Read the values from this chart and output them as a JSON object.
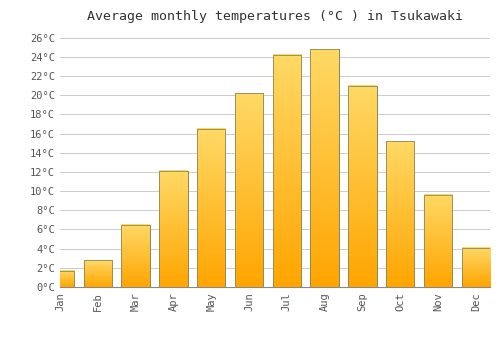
{
  "title": "Average monthly temperatures (°C ) in Tsukawaki",
  "months": [
    "Jan",
    "Feb",
    "Mar",
    "Apr",
    "May",
    "Jun",
    "Jul",
    "Aug",
    "Sep",
    "Oct",
    "Nov",
    "Dec"
  ],
  "values": [
    1.7,
    2.8,
    6.5,
    12.1,
    16.5,
    20.2,
    24.2,
    24.8,
    21.0,
    15.2,
    9.6,
    4.1
  ],
  "bar_color_bottom": "#FFA500",
  "bar_color_top": "#FFD966",
  "bar_edge_color": "#888855",
  "ylim": [
    0,
    27
  ],
  "yticks": [
    0,
    2,
    4,
    6,
    8,
    10,
    12,
    14,
    16,
    18,
    20,
    22,
    24,
    26
  ],
  "ytick_labels": [
    "0°C",
    "2°C",
    "4°C",
    "6°C",
    "8°C",
    "10°C",
    "12°C",
    "14°C",
    "16°C",
    "18°C",
    "20°C",
    "22°C",
    "24°C",
    "26°C"
  ],
  "background_color": "#ffffff",
  "grid_color": "#cccccc",
  "title_fontsize": 9.5,
  "tick_fontsize": 7.5,
  "bar_width": 0.75
}
